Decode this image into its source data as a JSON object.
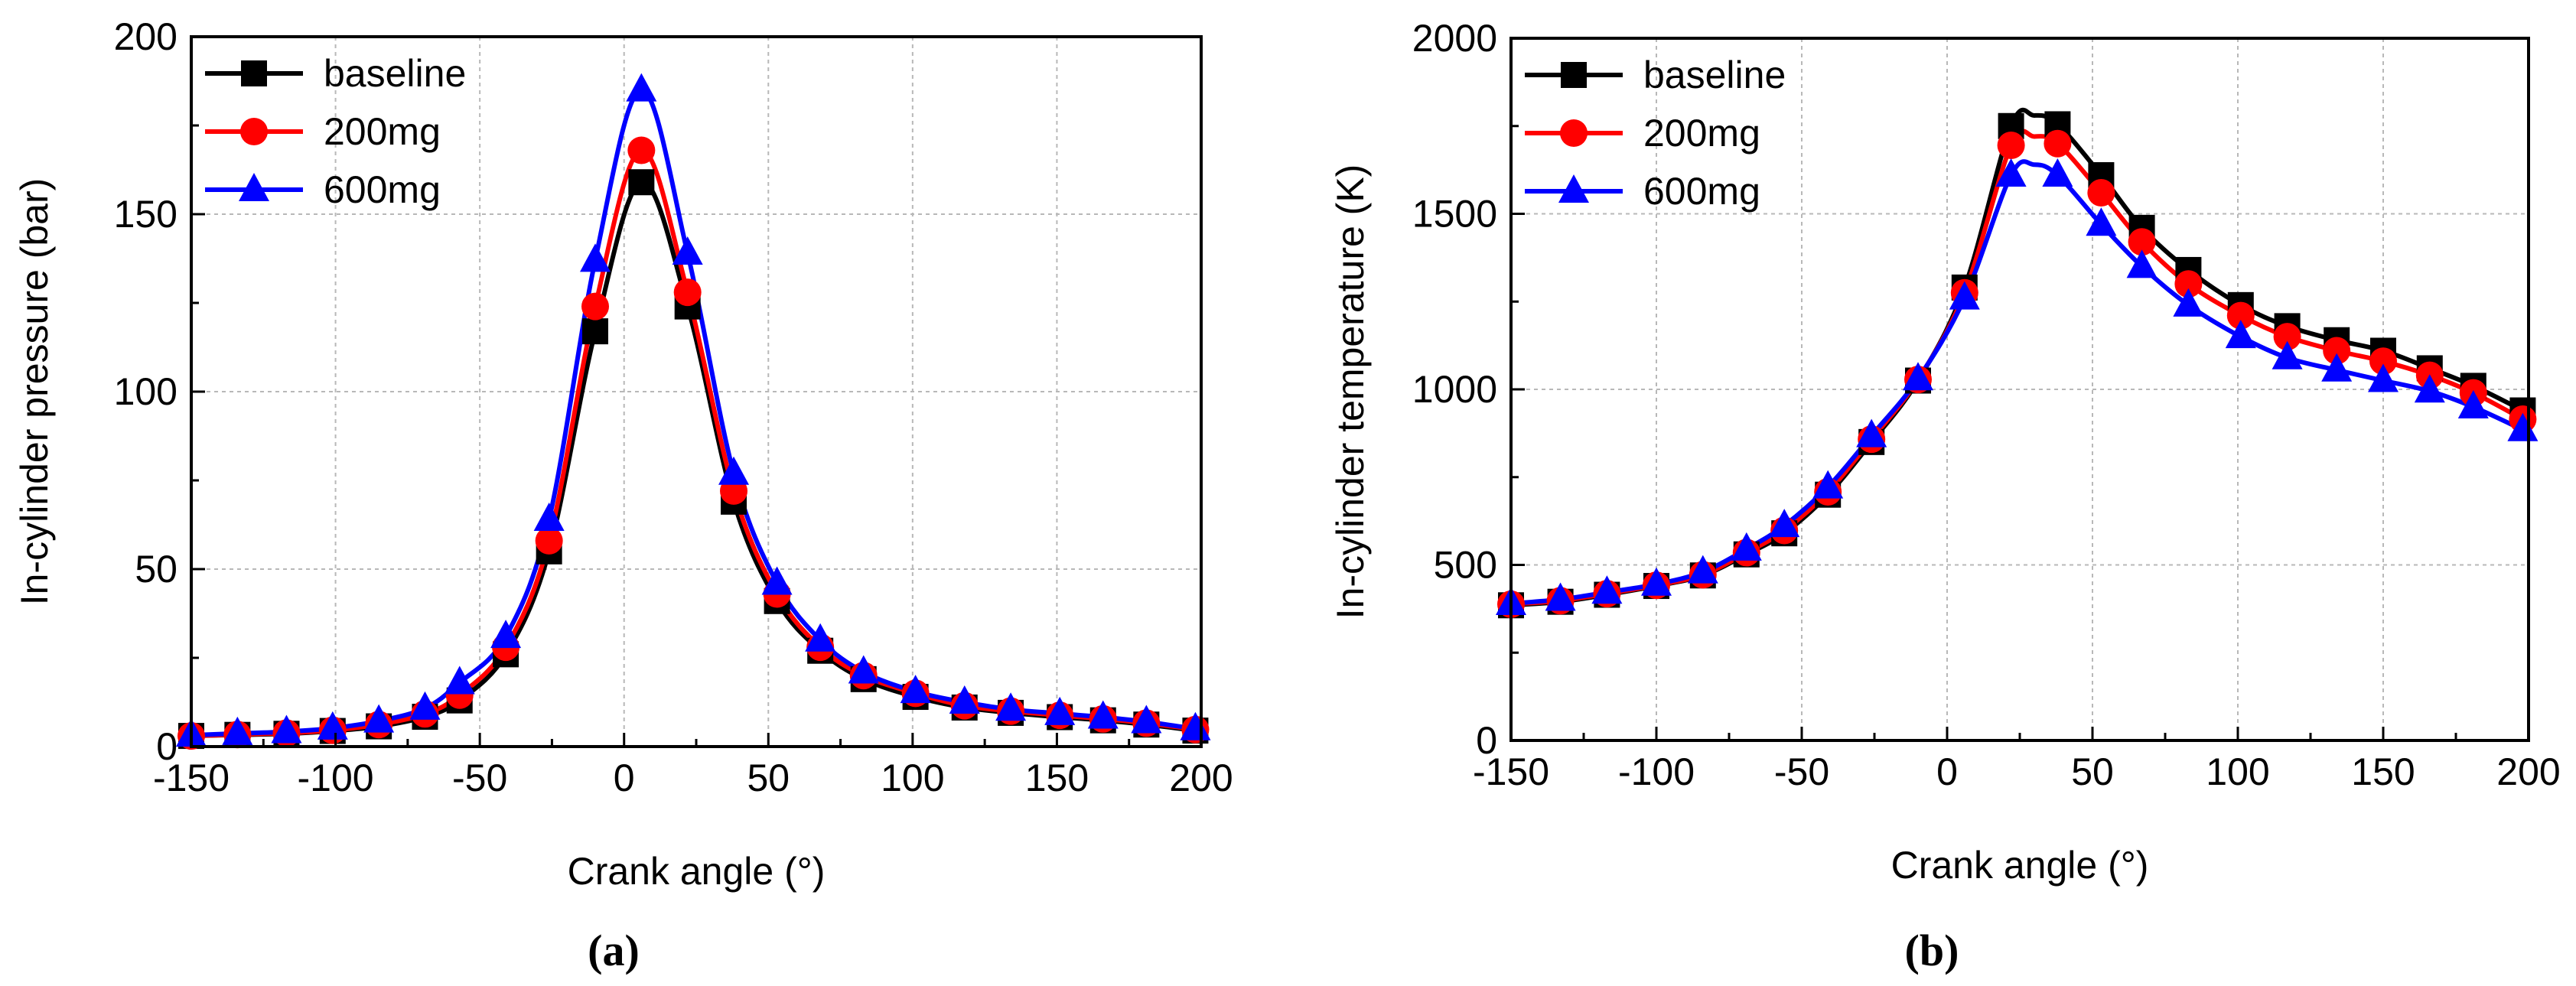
{
  "chart_data": [
    {
      "id": "a",
      "type": "line",
      "caption": "(a)",
      "xlabel": "Crank angle (°)",
      "ylabel": "In-cylinder pressure (bar)",
      "xlim": [
        -150,
        200
      ],
      "ylim": [
        0,
        200
      ],
      "xticks": [
        -150,
        -100,
        -50,
        0,
        50,
        100,
        150,
        200
      ],
      "yticks": [
        0,
        50,
        100,
        150,
        200
      ],
      "xminor": [
        -125,
        -75,
        -25,
        25,
        75,
        125,
        175
      ],
      "yminor": [
        25,
        75,
        125,
        175
      ],
      "grid": true,
      "legend_position": "top-left",
      "x": [
        -150,
        -134,
        -117,
        -101,
        -85,
        -69,
        -57,
        -41,
        -26,
        -10,
        6,
        22,
        38,
        53,
        68,
        83,
        101,
        118,
        134,
        151,
        166,
        181,
        198
      ],
      "series": [
        {
          "name": "baseline",
          "color": "#000000",
          "marker": "square",
          "values": [
            3,
            3.3,
            3.6,
            4.4,
            5.7,
            8.4,
            13,
            26,
            55,
            117,
            159,
            124,
            69,
            41,
            27,
            19,
            14,
            11,
            9.5,
            8.3,
            7.4,
            6.2,
            4.5
          ]
        },
        {
          "name": "200mg",
          "color": "#ff0000",
          "marker": "circle",
          "values": [
            3,
            3.4,
            3.8,
            4.6,
            6.2,
            9.2,
            14.5,
            28,
            58,
            124,
            168,
            128,
            72,
            43,
            28,
            20,
            15,
            11.5,
            10,
            8.8,
            7.8,
            6.6,
            4.8
          ]
        },
        {
          "name": "600mg",
          "color": "#0000ff",
          "marker": "triangle",
          "values": [
            3.2,
            3.7,
            4.2,
            5.2,
            7.2,
            10.8,
            18,
            31,
            64,
            137,
            185,
            139,
            77,
            46,
            30,
            21,
            15.5,
            12.5,
            10.5,
            9.3,
            8.3,
            7,
            5
          ]
        }
      ]
    },
    {
      "id": "b",
      "type": "line",
      "caption": "(b)",
      "xlabel": "Crank angle (°)",
      "ylabel": "In-cylinder temperature (K)",
      "xlim": [
        -150,
        200
      ],
      "ylim": [
        0,
        2000
      ],
      "xticks": [
        -150,
        -100,
        -50,
        0,
        50,
        100,
        150,
        200
      ],
      "yticks": [
        0,
        500,
        1000,
        1500,
        2000
      ],
      "xminor": [
        -125,
        -75,
        -25,
        25,
        75,
        125,
        175
      ],
      "yminor": [
        250,
        750,
        1250,
        1750
      ],
      "grid": true,
      "legend_position": "top-left",
      "x": [
        -150,
        -133,
        -117,
        -100,
        -84,
        -69,
        -56,
        -41,
        -26,
        -10,
        6,
        22,
        38,
        53,
        67,
        83,
        101,
        117,
        134,
        150,
        166,
        181,
        198
      ],
      "series": [
        {
          "name": "baseline",
          "color": "#000000",
          "marker": "square",
          "peak": [
            30,
            1780
          ],
          "values": [
            385,
            395,
            415,
            440,
            470,
            530,
            590,
            700,
            850,
            1025,
            1290,
            1750,
            1755,
            1610,
            1460,
            1340,
            1240,
            1180,
            1140,
            1110,
            1060,
            1010,
            940
          ]
        },
        {
          "name": "200mg",
          "color": "#ff0000",
          "marker": "circle",
          "peak": [
            30,
            1720
          ],
          "values": [
            388,
            398,
            418,
            442,
            472,
            535,
            598,
            708,
            858,
            1028,
            1275,
            1695,
            1700,
            1560,
            1420,
            1300,
            1210,
            1150,
            1110,
            1080,
            1040,
            990,
            915
          ]
        },
        {
          "name": "600mg",
          "color": "#0000ff",
          "marker": "triangle",
          "peak": [
            30,
            1640
          ],
          "values": [
            390,
            402,
            422,
            445,
            480,
            545,
            612,
            722,
            868,
            1030,
            1260,
            1610,
            1610,
            1470,
            1350,
            1240,
            1150,
            1090,
            1055,
            1025,
            995,
            950,
            885
          ]
        }
      ]
    }
  ]
}
